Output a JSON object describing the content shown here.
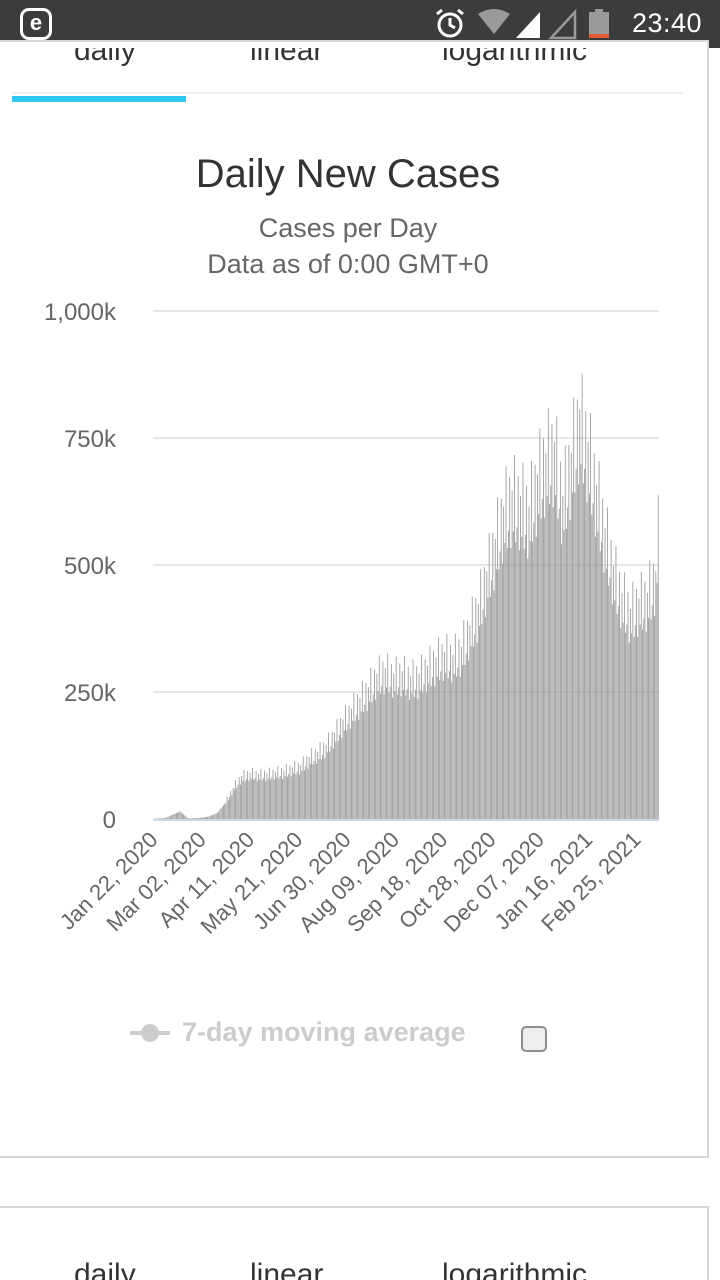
{
  "status_bar": {
    "app_icon_letter": "e",
    "time": "23:40",
    "icons": [
      "alarm-clock-icon",
      "wifi-icon",
      "cell-signal-icon",
      "cell-signal-empty-icon",
      "battery-low-icon"
    ]
  },
  "tabs": {
    "items": [
      "daily",
      "linear",
      "logarithmic"
    ],
    "active": "daily"
  },
  "colors": {
    "accent": "#2ec7f3",
    "bar": "#999999",
    "gridline": "#e6e6e6",
    "legend_disabled": "#cccccc"
  },
  "chart_data": {
    "type": "bar",
    "title": "Daily New Cases",
    "subtitle_lines": [
      "Cases per Day",
      "Data as of 0:00 GMT+0"
    ],
    "ylim": [
      0,
      1000000
    ],
    "yticks": [
      0,
      250000,
      500000,
      750000,
      1000000
    ],
    "ytick_labels": [
      "0",
      "250k",
      "500k",
      "750k",
      "1,000k"
    ],
    "x_start": "Jan 22, 2020",
    "x_end": "Mar 15, 2021",
    "xtick_labels": [
      "Jan 22, 2020",
      "Mar 02, 2020",
      "Apr 11, 2020",
      "May 21, 2020",
      "Jun 30, 2020",
      "Aug 09, 2020",
      "Sep 18, 2020",
      "Oct 28, 2020",
      "Dec 07, 2020",
      "Jan 16, 2021",
      "Feb 25, 2021"
    ],
    "series": [
      {
        "legend_label": "7-day moving average",
        "legend_enabled": false,
        "points": [
          [
            "Jan 22, 2020",
            500
          ],
          [
            "Feb 01, 2020",
            2000
          ],
          [
            "Feb 13, 2020",
            15000
          ],
          [
            "Feb 20, 2020",
            1000
          ],
          [
            "Mar 01, 2020",
            2500
          ],
          [
            "Mar 08, 2020",
            5000
          ],
          [
            "Mar 15, 2020",
            12000
          ],
          [
            "Mar 22, 2020",
            33000
          ],
          [
            "Mar 29, 2020",
            62000
          ],
          [
            "Apr 04, 2020",
            80000
          ],
          [
            "Apr 11, 2020",
            86000
          ],
          [
            "Apr 18, 2020",
            84000
          ],
          [
            "Apr 25, 2020",
            85000
          ],
          [
            "May 02, 2020",
            88000
          ],
          [
            "May 09, 2020",
            90000
          ],
          [
            "May 16, 2020",
            96000
          ],
          [
            "May 23, 2020",
            100000
          ],
          [
            "May 30, 2020",
            115000
          ],
          [
            "Jun 06, 2020",
            125000
          ],
          [
            "Jun 13, 2020",
            138000
          ],
          [
            "Jun 20, 2020",
            160000
          ],
          [
            "Jun 27, 2020",
            185000
          ],
          [
            "Jul 04, 2020",
            205000
          ],
          [
            "Jul 11, 2020",
            225000
          ],
          [
            "Jul 18, 2020",
            245000
          ],
          [
            "Jul 25, 2020",
            270000
          ],
          [
            "Aug 01, 2020",
            280000
          ],
          [
            "Aug 08, 2020",
            270000
          ],
          [
            "Aug 15, 2020",
            275000
          ],
          [
            "Aug 22, 2020",
            265000
          ],
          [
            "Aug 29, 2020",
            270000
          ],
          [
            "Sep 05, 2020",
            285000
          ],
          [
            "Sep 12, 2020",
            300000
          ],
          [
            "Sep 19, 2020",
            310000
          ],
          [
            "Sep 26, 2020",
            305000
          ],
          [
            "Oct 03, 2020",
            320000
          ],
          [
            "Oct 10, 2020",
            360000
          ],
          [
            "Oct 17, 2020",
            400000
          ],
          [
            "Oct 24, 2020",
            460000
          ],
          [
            "Oct 31, 2020",
            520000
          ],
          [
            "Nov 07, 2020",
            580000
          ],
          [
            "Nov 14, 2020",
            610000
          ],
          [
            "Nov 21, 2020",
            600000
          ],
          [
            "Nov 28, 2020",
            580000
          ],
          [
            "Dec 05, 2020",
            640000
          ],
          [
            "Dec 12, 2020",
            680000
          ],
          [
            "Dec 19, 2020",
            700000
          ],
          [
            "Dec 26, 2020",
            600000
          ],
          [
            "Jan 02, 2021",
            680000
          ],
          [
            "Jan 09, 2021",
            760000
          ],
          [
            "Jan 16, 2021",
            700000
          ],
          [
            "Jan 23, 2021",
            620000
          ],
          [
            "Jan 30, 2021",
            540000
          ],
          [
            "Feb 06, 2021",
            470000
          ],
          [
            "Feb 13, 2021",
            420000
          ],
          [
            "Feb 20, 2021",
            390000
          ],
          [
            "Feb 27, 2021",
            410000
          ],
          [
            "Mar 06, 2021",
            420000
          ],
          [
            "Mar 13, 2021",
            460000
          ],
          [
            "Mar 15, 2021",
            540000
          ]
        ]
      }
    ],
    "grid": true,
    "legend_position": "bottom"
  }
}
